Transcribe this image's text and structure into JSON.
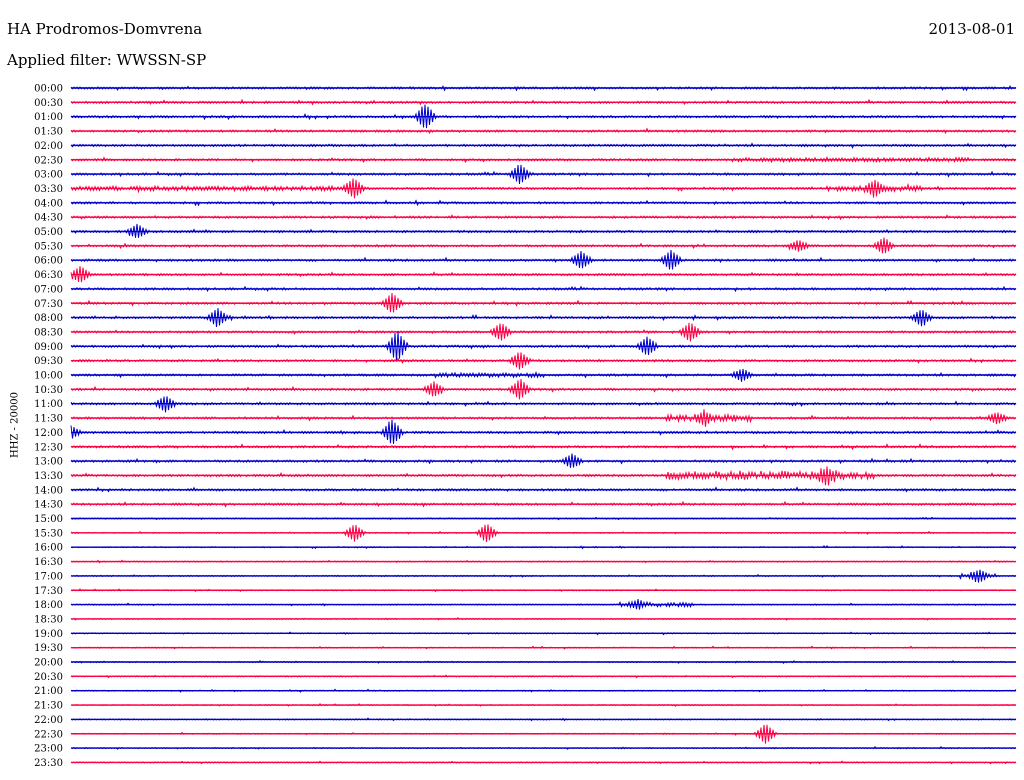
{
  "header": {
    "station": "HA Prodromos-Domvrena",
    "date": "2013-08-01",
    "filter": "Applied filter: WWSSN-SP"
  },
  "chart_data": {
    "type": "line",
    "ylabel": "HHZ - 20000",
    "row_labels": [
      "00:00",
      "00:30",
      "01:00",
      "01:30",
      "02:00",
      "02:30",
      "03:00",
      "03:30",
      "04:00",
      "04:30",
      "05:00",
      "05:30",
      "06:00",
      "06:30",
      "07:00",
      "07:30",
      "08:00",
      "08:30",
      "09:00",
      "09:30",
      "10:00",
      "10:30",
      "11:00",
      "11:30",
      "12:00",
      "12:30",
      "13:00",
      "13:30",
      "14:00",
      "14:30",
      "15:00",
      "15:30",
      "16:00",
      "16:30",
      "17:00",
      "17:30",
      "18:00",
      "18:30",
      "19:00",
      "19:30",
      "20:00",
      "20:30",
      "21:00",
      "21:30",
      "22:00",
      "22:30",
      "23:00",
      "23:30"
    ],
    "row_colors": [
      "#0000cc",
      "#ff0044"
    ],
    "grid": false,
    "events": [
      {
        "row": 2,
        "t": 0.375,
        "amp": 2.0
      },
      {
        "row": 6,
        "t": 0.475,
        "amp": 1.6
      },
      {
        "row": 7,
        "t": 0.3,
        "amp": 1.5
      },
      {
        "row": 7,
        "t": 0.85,
        "amp": 1.2
      },
      {
        "row": 10,
        "t": 0.07,
        "amp": 1.1
      },
      {
        "row": 11,
        "t": 0.86,
        "amp": 1.3
      },
      {
        "row": 11,
        "t": 0.77,
        "amp": 0.9
      },
      {
        "row": 12,
        "t": 0.54,
        "amp": 1.4
      },
      {
        "row": 12,
        "t": 0.635,
        "amp": 1.6
      },
      {
        "row": 13,
        "t": 0.01,
        "amp": 1.3
      },
      {
        "row": 15,
        "t": 0.34,
        "amp": 1.6
      },
      {
        "row": 16,
        "t": 0.155,
        "amp": 1.5
      },
      {
        "row": 16,
        "t": 0.9,
        "amp": 1.3
      },
      {
        "row": 17,
        "t": 0.455,
        "amp": 1.4
      },
      {
        "row": 17,
        "t": 0.655,
        "amp": 1.5
      },
      {
        "row": 18,
        "t": 0.61,
        "amp": 1.5
      },
      {
        "row": 18,
        "t": 0.345,
        "amp": 2.5
      },
      {
        "row": 19,
        "t": 0.475,
        "amp": 1.4
      },
      {
        "row": 20,
        "t": 0.71,
        "amp": 1.0
      },
      {
        "row": 21,
        "t": 0.384,
        "amp": 1.2
      },
      {
        "row": 21,
        "t": 0.475,
        "amp": 1.6
      },
      {
        "row": 22,
        "t": 0.1,
        "amp": 1.3
      },
      {
        "row": 23,
        "t": 0.67,
        "amp": 1.0
      },
      {
        "row": 23,
        "t": 0.98,
        "amp": 0.9
      },
      {
        "row": 24,
        "t": 0.34,
        "amp": 2.0
      },
      {
        "row": 24,
        "t": 0.0,
        "amp": 1.0
      },
      {
        "row": 26,
        "t": 0.53,
        "amp": 1.1
      },
      {
        "row": 27,
        "t": 0.8,
        "amp": 1.1
      },
      {
        "row": 31,
        "t": 0.3,
        "amp": 1.4
      },
      {
        "row": 31,
        "t": 0.44,
        "amp": 1.5
      },
      {
        "row": 34,
        "t": 0.96,
        "amp": 0.8
      },
      {
        "row": 36,
        "t": 0.6,
        "amp": 0.6
      },
      {
        "row": 45,
        "t": 0.735,
        "amp": 1.6
      }
    ],
    "busy": [
      {
        "row": 23,
        "t0": 0.63,
        "t1": 0.72,
        "amp": 0.9
      },
      {
        "row": 27,
        "t0": 0.63,
        "t1": 0.85,
        "amp": 1.2
      },
      {
        "row": 20,
        "t0": 0.38,
        "t1": 0.5,
        "amp": 0.5
      },
      {
        "row": 36,
        "t0": 0.58,
        "t1": 0.66,
        "amp": 0.6
      },
      {
        "row": 34,
        "t0": 0.94,
        "t1": 0.98,
        "amp": 0.7
      },
      {
        "row": 7,
        "t0": 0.0,
        "t1": 0.3,
        "amp": 0.5
      },
      {
        "row": 7,
        "t0": 0.8,
        "t1": 0.9,
        "amp": 0.6
      },
      {
        "row": 5,
        "t0": 0.7,
        "t1": 0.95,
        "amp": 0.4
      }
    ]
  }
}
